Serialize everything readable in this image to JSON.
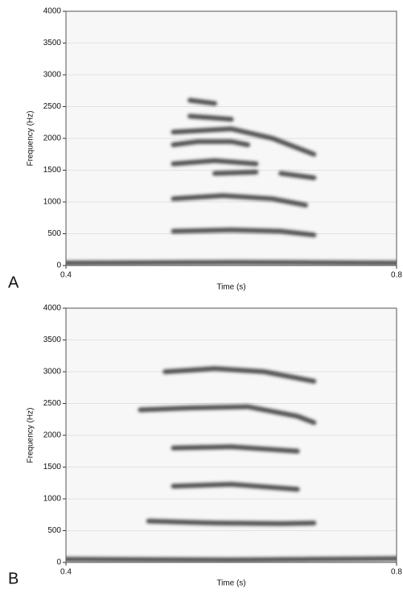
{
  "chart_data": [
    {
      "type": "spectrogram",
      "panel_label": "A",
      "xlabel": "Time (s)",
      "ylabel": "Frequency (Hz)",
      "xlim": [
        0.4,
        0.8
      ],
      "xticks": [
        0.4,
        0.8
      ],
      "ylim": [
        0,
        4000
      ],
      "yticks": [
        0,
        500,
        1000,
        1500,
        2000,
        2500,
        3000,
        3500,
        4000
      ],
      "grid": true,
      "color": "#2a2a2a",
      "bands": [
        {
          "x": [
            0.4,
            0.6,
            0.8
          ],
          "values": [
            40,
            50,
            40
          ]
        },
        {
          "x": [
            0.53,
            0.6,
            0.66,
            0.7
          ],
          "values": [
            540,
            560,
            540,
            480
          ]
        },
        {
          "x": [
            0.53,
            0.59,
            0.65,
            0.69
          ],
          "values": [
            1050,
            1100,
            1050,
            950
          ]
        },
        {
          "x": [
            0.53,
            0.58,
            0.63
          ],
          "values": [
            1600,
            1650,
            1600
          ]
        },
        {
          "x": [
            0.58,
            0.63
          ],
          "values": [
            1450,
            1470
          ]
        },
        {
          "x": [
            0.66,
            0.7
          ],
          "values": [
            1450,
            1380
          ]
        },
        {
          "x": [
            0.53,
            0.56,
            0.6,
            0.62
          ],
          "values": [
            1900,
            1950,
            1950,
            1900
          ]
        },
        {
          "x": [
            0.53,
            0.6,
            0.65,
            0.7
          ],
          "values": [
            2100,
            2150,
            2000,
            1750
          ]
        },
        {
          "x": [
            0.55,
            0.6
          ],
          "values": [
            2350,
            2300
          ]
        },
        {
          "x": [
            0.55,
            0.58
          ],
          "values": [
            2600,
            2550
          ]
        }
      ]
    },
    {
      "type": "spectrogram",
      "panel_label": "B",
      "xlabel": "Time (s)",
      "ylabel": "Frequency (Hz)",
      "xlim": [
        0.4,
        0.8
      ],
      "xticks": [
        0.4,
        0.8
      ],
      "ylim": [
        0,
        4000
      ],
      "yticks": [
        0,
        500,
        1000,
        1500,
        2000,
        2500,
        3000,
        3500,
        4000
      ],
      "grid": true,
      "color": "#2a2a2a",
      "bands": [
        {
          "x": [
            0.4,
            0.6,
            0.8
          ],
          "values": [
            50,
            40,
            60
          ]
        },
        {
          "x": [
            0.5,
            0.58,
            0.66,
            0.7
          ],
          "values": [
            650,
            620,
            610,
            620
          ]
        },
        {
          "x": [
            0.53,
            0.6,
            0.68
          ],
          "values": [
            1200,
            1230,
            1150
          ]
        },
        {
          "x": [
            0.53,
            0.6,
            0.68
          ],
          "values": [
            1800,
            1820,
            1750
          ]
        },
        {
          "x": [
            0.49,
            0.55,
            0.62,
            0.68,
            0.7
          ],
          "values": [
            2400,
            2430,
            2450,
            2300,
            2200
          ]
        },
        {
          "x": [
            0.52,
            0.58,
            0.64,
            0.7
          ],
          "values": [
            3000,
            3050,
            3000,
            2850
          ]
        }
      ]
    }
  ]
}
